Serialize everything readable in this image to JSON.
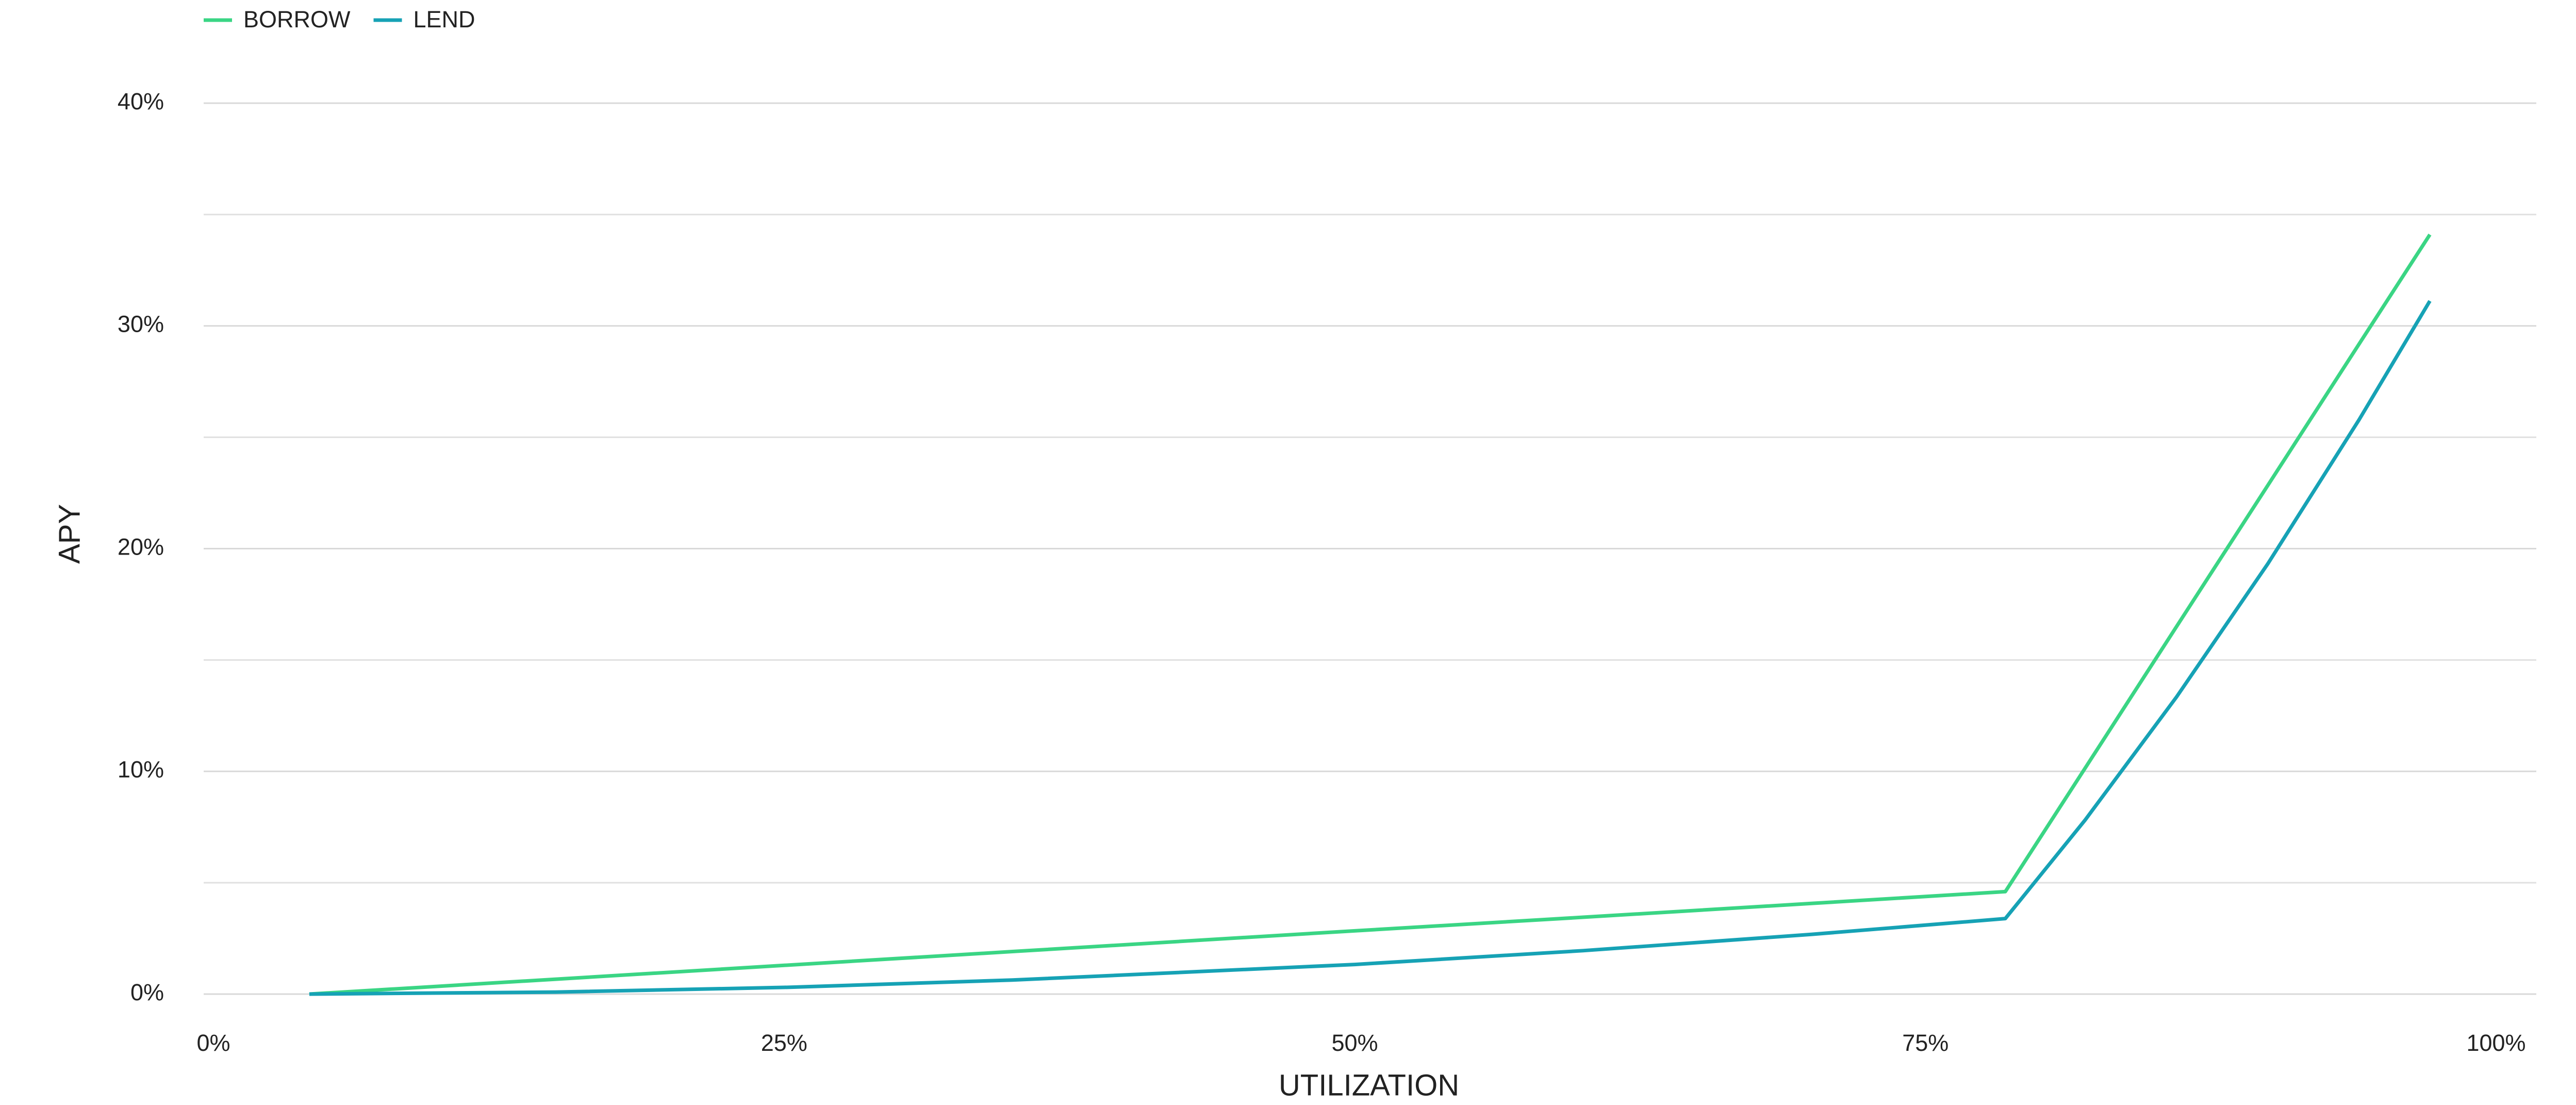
{
  "chart_data": {
    "type": "line",
    "x_label": "UTILIZATION",
    "y_label": "APY",
    "x": [
      4.2,
      15,
      25,
      35,
      50,
      60,
      70,
      78.5,
      82,
      86,
      90,
      94,
      97.1
    ],
    "series": [
      {
        "name": "BORROW",
        "color": "#3ad584",
        "values": [
          0,
          0.67,
          1.29,
          1.91,
          2.84,
          3.45,
          4.07,
          4.6,
          10.15,
          16.5,
          22.84,
          29.19,
          34.1
        ]
      },
      {
        "name": "LEND",
        "color": "#16a2b5",
        "values": [
          0,
          0.09,
          0.3,
          0.63,
          1.33,
          1.95,
          2.68,
          3.39,
          7.82,
          13.34,
          19.32,
          25.79,
          31.12
        ]
      }
    ],
    "xlim": [
      0,
      100
    ],
    "xticks": [
      {
        "value": 0,
        "label": "0%"
      },
      {
        "value": 25,
        "label": "25%"
      },
      {
        "value": 50,
        "label": "50%"
      },
      {
        "value": 75,
        "label": "75%"
      },
      {
        "value": 100,
        "label": "100%"
      }
    ],
    "ylim": [
      0,
      40
    ],
    "yticks": [
      {
        "value": 0,
        "label": "0%"
      },
      {
        "value": 10,
        "label": "10%"
      },
      {
        "value": 20,
        "label": "20%"
      },
      {
        "value": 30,
        "label": "30%"
      },
      {
        "value": 40,
        "label": "40%"
      }
    ],
    "yminor": [
      5,
      15,
      25,
      35
    ],
    "grid": true,
    "legend": "top-left"
  }
}
